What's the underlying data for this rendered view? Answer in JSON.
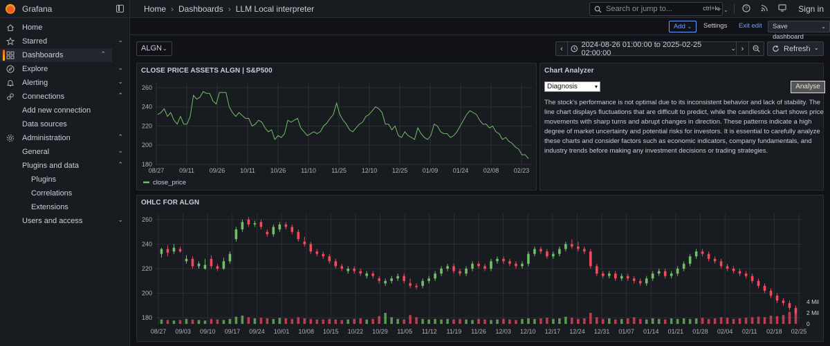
{
  "app": {
    "name": "Grafana"
  },
  "breadcrumb": [
    "Home",
    "Dashboards",
    "LLM Local interpreter"
  ],
  "search": {
    "placeholder": "Search or jump to...",
    "shortcut": "ctrl+k"
  },
  "top_right": {
    "sign_in": "Sign in",
    "plus": "+"
  },
  "sidebar": {
    "items": [
      {
        "label": "Home",
        "icon": "home-icon"
      },
      {
        "label": "Starred",
        "icon": "star-icon"
      },
      {
        "label": "Dashboards",
        "icon": "apps-icon"
      },
      {
        "label": "Explore",
        "icon": "compass-icon"
      },
      {
        "label": "Alerting",
        "icon": "bell-icon"
      },
      {
        "label": "Connections",
        "icon": "link-icon"
      },
      {
        "label": "Add new connection"
      },
      {
        "label": "Data sources"
      },
      {
        "label": "Administration",
        "icon": "cog-icon"
      },
      {
        "label": "General"
      },
      {
        "label": "Plugins and data"
      },
      {
        "label": "Plugins"
      },
      {
        "label": "Correlations"
      },
      {
        "label": "Extensions"
      },
      {
        "label": "Users and access"
      }
    ]
  },
  "toolbar": {
    "add": "Add",
    "settings": "Settings",
    "exit_edit": "Exit edit",
    "save": "Save dashboard"
  },
  "variable": {
    "value": "ALGN"
  },
  "time_range": {
    "label": "2024-08-26 01:00:00 to 2025-02-25 02:00:00",
    "refresh": "Refresh"
  },
  "panels": {
    "close_title": "CLOSE PRICE ASSETS ALGN | S&P500",
    "analyzer_title": "Chart Analyzer",
    "analyzer_select": "Diagnosis",
    "analyzer_button": "Analyse",
    "analyzer_text": "The stock's performance is not optimal due to its inconsistent behavior and lack of stability. The line chart displays fluctuations that are difficult to predict, while the candlestick chart shows price movements with sharp turns and abrupt changes in direction. These patterns indicate a high degree of market uncertainty and potential risks for investors. It is essential to carefully analyze these charts and consider factors such as economic indicators, company fundamentals, and industry trends before making any investment decisions or trading strategies.",
    "ohlc_title": "OHLC FOR ALGN"
  },
  "colors": {
    "line": "#73bf69",
    "up": "#73bf69",
    "down": "#f2495c",
    "vol_up": "#73bf69",
    "vol_down": "#f2495c"
  },
  "chart_data": [
    {
      "type": "line",
      "title": "CLOSE PRICE ASSETS ALGN | S&P500",
      "x_ticks": [
        "08/27",
        "09/11",
        "09/26",
        "10/11",
        "10/26",
        "11/10",
        "11/25",
        "12/10",
        "12/25",
        "01/09",
        "01/24",
        "02/08",
        "02/23"
      ],
      "y_ticks": [
        180,
        200,
        220,
        240,
        260
      ],
      "ylim": [
        180,
        265
      ],
      "series": [
        {
          "name": "close_price",
          "values": [
            232,
            234,
            238,
            230,
            234,
            226,
            222,
            230,
            222,
            222,
            230,
            252,
            248,
            250,
            256,
            254,
            254,
            246,
            243,
            255,
            255,
            255,
            240,
            234,
            230,
            234,
            231,
            228,
            228,
            220,
            222,
            226,
            224,
            218,
            214,
            216,
            206,
            210,
            208,
            212,
            226,
            224,
            226,
            228,
            218,
            214,
            210,
            212,
            214,
            212,
            214,
            220,
            223,
            228,
            232,
            244,
            232,
            226,
            222,
            216,
            214,
            218,
            222,
            224,
            230,
            232,
            236,
            240,
            238,
            234,
            222,
            222,
            216,
            220,
            210,
            208,
            214,
            210,
            208,
            206,
            218,
            212,
            208,
            206,
            210,
            222,
            220,
            214,
            212,
            212,
            208,
            210,
            214,
            220,
            226,
            232,
            236,
            234,
            232,
            226,
            222,
            222,
            218,
            220,
            214,
            212,
            206,
            208,
            204,
            202,
            198,
            196,
            190,
            190,
            186
          ]
        }
      ],
      "legend": "bottom-left"
    },
    {
      "type": "candlestick",
      "title": "OHLC FOR ALGN",
      "x_ticks": [
        "08/27",
        "09/03",
        "09/10",
        "09/17",
        "09/24",
        "10/01",
        "10/08",
        "10/15",
        "10/22",
        "10/29",
        "11/05",
        "11/12",
        "11/19",
        "11/26",
        "12/03",
        "12/10",
        "12/17",
        "12/24",
        "12/31",
        "01/07",
        "01/14",
        "01/21",
        "01/28",
        "02/04",
        "02/11",
        "02/18",
        "02/25"
      ],
      "y_ticks": [
        180,
        200,
        220,
        240,
        260
      ],
      "volume_ticks": [
        "0",
        "2 Mil",
        "4 Mil"
      ],
      "ylim": [
        175,
        265
      ],
      "candles": [
        [
          232,
          236,
          229,
          237
        ],
        [
          236,
          233,
          230,
          239
        ],
        [
          234,
          237,
          232,
          240
        ],
        [
          236,
          234,
          233,
          238
        ],
        [
          226,
          228,
          224,
          231
        ],
        [
          228,
          222,
          220,
          230
        ],
        [
          222,
          224,
          220,
          226
        ],
        [
          220,
          223,
          219,
          228
        ],
        [
          228,
          222,
          220,
          231
        ],
        [
          222,
          220,
          218,
          224
        ],
        [
          220,
          226,
          219,
          229
        ],
        [
          226,
          232,
          224,
          234
        ],
        [
          244,
          252,
          242,
          254
        ],
        [
          252,
          258,
          250,
          260
        ],
        [
          260,
          256,
          254,
          262
        ],
        [
          256,
          257,
          254,
          259
        ],
        [
          258,
          254,
          252,
          260
        ],
        [
          250,
          248,
          246,
          252
        ],
        [
          248,
          254,
          246,
          256
        ],
        [
          252,
          256,
          250,
          258
        ],
        [
          256,
          254,
          252,
          258
        ],
        [
          254,
          250,
          248,
          256
        ],
        [
          250,
          244,
          242,
          252
        ],
        [
          242,
          240,
          238,
          246
        ],
        [
          240,
          234,
          232,
          242
        ],
        [
          234,
          232,
          230,
          236
        ],
        [
          232,
          230,
          228,
          234
        ],
        [
          230,
          226,
          224,
          232
        ],
        [
          226,
          222,
          220,
          228
        ],
        [
          222,
          220,
          218,
          224
        ],
        [
          218,
          220,
          216,
          222
        ],
        [
          220,
          218,
          216,
          222
        ],
        [
          218,
          216,
          214,
          220
        ],
        [
          214,
          216,
          212,
          218
        ],
        [
          216,
          214,
          212,
          218
        ],
        [
          212,
          210,
          208,
          214
        ],
        [
          208,
          210,
          206,
          212
        ],
        [
          210,
          212,
          208,
          214
        ],
        [
          212,
          214,
          210,
          216
        ],
        [
          214,
          210,
          208,
          216
        ],
        [
          208,
          206,
          204,
          212
        ],
        [
          206,
          205,
          203,
          208
        ],
        [
          206,
          210,
          204,
          212
        ],
        [
          210,
          212,
          208,
          214
        ],
        [
          212,
          216,
          210,
          218
        ],
        [
          216,
          220,
          214,
          222
        ],
        [
          220,
          222,
          218,
          224
        ],
        [
          222,
          218,
          216,
          224
        ],
        [
          218,
          216,
          214,
          220
        ],
        [
          216,
          220,
          214,
          222
        ],
        [
          220,
          224,
          218,
          226
        ],
        [
          224,
          222,
          220,
          226
        ],
        [
          222,
          220,
          218,
          224
        ],
        [
          220,
          226,
          218,
          228
        ],
        [
          226,
          228,
          224,
          230
        ],
        [
          228,
          226,
          224,
          230
        ],
        [
          226,
          224,
          222,
          228
        ],
        [
          224,
          222,
          220,
          226
        ],
        [
          222,
          224,
          220,
          226
        ],
        [
          224,
          232,
          222,
          234
        ],
        [
          232,
          236,
          230,
          238
        ],
        [
          236,
          234,
          232,
          238
        ],
        [
          234,
          230,
          228,
          236
        ],
        [
          230,
          232,
          228,
          234
        ],
        [
          232,
          236,
          230,
          238
        ],
        [
          236,
          240,
          234,
          242
        ],
        [
          240,
          238,
          236,
          244
        ],
        [
          238,
          236,
          234,
          242
        ],
        [
          236,
          234,
          232,
          238
        ],
        [
          234,
          222,
          220,
          236
        ],
        [
          222,
          216,
          214,
          224
        ],
        [
          216,
          214,
          212,
          218
        ],
        [
          214,
          216,
          212,
          218
        ],
        [
          216,
          212,
          210,
          218
        ],
        [
          212,
          214,
          210,
          216
        ],
        [
          214,
          212,
          210,
          216
        ],
        [
          212,
          210,
          208,
          214
        ],
        [
          210,
          208,
          206,
          212
        ],
        [
          208,
          212,
          206,
          214
        ],
        [
          212,
          216,
          210,
          218
        ],
        [
          216,
          218,
          214,
          220
        ],
        [
          218,
          214,
          212,
          220
        ],
        [
          214,
          216,
          212,
          218
        ],
        [
          216,
          220,
          214,
          222
        ],
        [
          220,
          224,
          218,
          226
        ],
        [
          224,
          230,
          222,
          232
        ],
        [
          230,
          234,
          228,
          236
        ],
        [
          234,
          232,
          230,
          236
        ],
        [
          232,
          228,
          226,
          234
        ],
        [
          228,
          226,
          224,
          230
        ],
        [
          226,
          222,
          220,
          228
        ],
        [
          222,
          220,
          218,
          224
        ],
        [
          220,
          218,
          216,
          222
        ],
        [
          218,
          216,
          214,
          220
        ],
        [
          216,
          214,
          212,
          218
        ],
        [
          214,
          210,
          208,
          216
        ],
        [
          210,
          206,
          204,
          212
        ],
        [
          206,
          202,
          200,
          208
        ],
        [
          202,
          198,
          196,
          204
        ],
        [
          198,
          194,
          192,
          200
        ],
        [
          194,
          192,
          190,
          196
        ],
        [
          192,
          188,
          186,
          194
        ],
        [
          188,
          184,
          182,
          190
        ]
      ],
      "volume": [
        0.8,
        0.7,
        0.6,
        0.7,
        0.9,
        0.8,
        0.7,
        0.6,
        0.9,
        0.8,
        0.7,
        0.9,
        1.3,
        1.5,
        1.2,
        1.0,
        1.1,
        1.0,
        0.9,
        1.1,
        1.0,
        0.9,
        1.2,
        1.0,
        0.9,
        0.8,
        0.8,
        0.9,
        0.8,
        0.7,
        0.8,
        0.9,
        1.0,
        0.8,
        0.9,
        1.4,
        2.0,
        1.2,
        0.9,
        0.8,
        1.6,
        1.2,
        0.9,
        0.8,
        0.9,
        0.8,
        0.9,
        0.8,
        0.9,
        0.8,
        0.7,
        0.9,
        0.8,
        0.7,
        0.8,
        0.9,
        0.8,
        0.7,
        0.9,
        1.0,
        0.9,
        1.0,
        1.1,
        0.9,
        1.0,
        1.3,
        1.1,
        0.9,
        1.0,
        2.0,
        1.2,
        0.9,
        1.0,
        0.8,
        0.9,
        1.0,
        1.2,
        0.9,
        0.8,
        1.0,
        0.9,
        0.8,
        1.0,
        0.9,
        1.0,
        0.9,
        1.0,
        1.1,
        0.9,
        1.0,
        1.2,
        1.1,
        0.9,
        1.0,
        1.1,
        1.2,
        1.3,
        1.2,
        1.5,
        1.4,
        1.6,
        2.2,
        2.5,
        3.1
      ]
    }
  ]
}
